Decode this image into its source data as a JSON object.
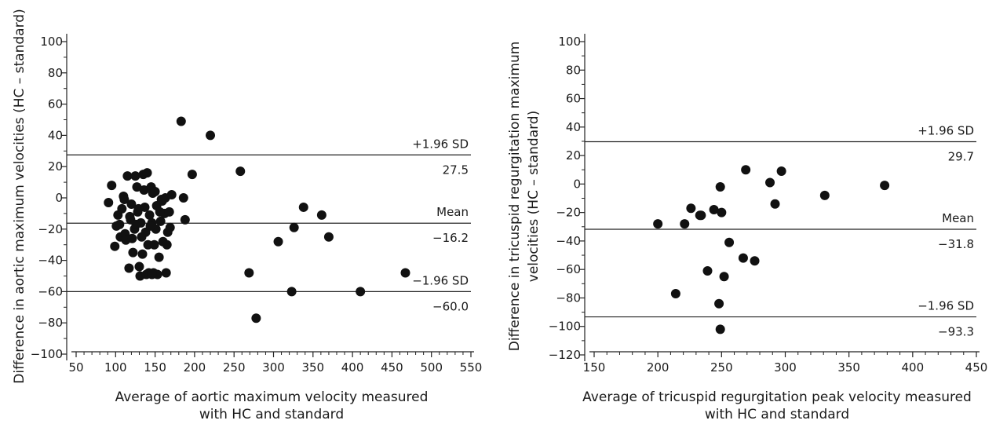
{
  "chart_data": [
    {
      "type": "scatter",
      "xlabel": [
        "Average of aortic maximum velocity measured",
        "with HC and standard"
      ],
      "ylabel": "Difference in aortic maximum velocities (HC – standard)",
      "xlim": [
        50,
        550
      ],
      "ylim": [
        -100,
        100
      ],
      "xticks": [
        50,
        100,
        150,
        200,
        250,
        300,
        350,
        400,
        450,
        500,
        550
      ],
      "yticks": [
        100,
        80,
        60,
        40,
        20,
        0,
        -20,
        -40,
        -60,
        -80,
        -100
      ],
      "ytick_labels": [
        "100",
        "80",
        "60",
        "40",
        "20",
        "0",
        "−20",
        "−40",
        "−60",
        "−80",
        "−100"
      ],
      "grid": false,
      "lines": [
        {
          "label": "+1.96 SD",
          "value_label": "27.5",
          "y": 27.5
        },
        {
          "label": "Mean",
          "value_label": "−16.2",
          "y": -16.2
        },
        {
          "label": "−1.96 SD",
          "value_label": "−60.0",
          "y": -60.0
        }
      ],
      "points": [
        [
          183,
          49
        ],
        [
          220,
          40
        ],
        [
          258,
          17
        ],
        [
          197,
          15
        ],
        [
          186,
          0
        ],
        [
          188,
          -14
        ],
        [
          269,
          -48
        ],
        [
          278,
          -77
        ],
        [
          306,
          -28
        ],
        [
          326,
          -19
        ],
        [
          323,
          -60
        ],
        [
          338,
          -6
        ],
        [
          361,
          -11
        ],
        [
          370,
          -25
        ],
        [
          410,
          -60
        ],
        [
          467,
          -48
        ],
        [
          95,
          8
        ],
        [
          91,
          -3
        ],
        [
          103,
          -11
        ],
        [
          106,
          -25
        ],
        [
          99,
          -31
        ],
        [
          101,
          -18
        ],
        [
          108,
          -7
        ],
        [
          110,
          1
        ],
        [
          112,
          -23
        ],
        [
          115,
          14
        ],
        [
          117,
          -45
        ],
        [
          113,
          -27
        ],
        [
          118,
          -12
        ],
        [
          120,
          -4
        ],
        [
          122,
          -35
        ],
        [
          124,
          -20
        ],
        [
          125,
          14
        ],
        [
          127,
          7
        ],
        [
          128,
          -9
        ],
        [
          130,
          -44
        ],
        [
          131,
          -50
        ],
        [
          132,
          -16
        ],
        [
          134,
          -36
        ],
        [
          135,
          15
        ],
        [
          136,
          5
        ],
        [
          137,
          -6
        ],
        [
          138,
          -22
        ],
        [
          139,
          -49
        ],
        [
          140,
          16
        ],
        [
          141,
          -30
        ],
        [
          142,
          -48
        ],
        [
          143,
          -11
        ],
        [
          145,
          7
        ],
        [
          146,
          -16
        ],
        [
          147,
          3
        ],
        [
          148,
          -48
        ],
        [
          149,
          -30
        ],
        [
          150,
          4
        ],
        [
          151,
          -20
        ],
        [
          152,
          -5
        ],
        [
          153,
          -49
        ],
        [
          155,
          -38
        ],
        [
          156,
          -9
        ],
        [
          157,
          -15
        ],
        [
          159,
          -2
        ],
        [
          160,
          -28
        ],
        [
          162,
          -10
        ],
        [
          163,
          0
        ],
        [
          164,
          -48
        ],
        [
          165,
          -30
        ],
        [
          166,
          -22
        ],
        [
          168,
          -9
        ],
        [
          169,
          -19
        ],
        [
          171,
          2
        ],
        [
          119,
          -14
        ],
        [
          126,
          -17
        ],
        [
          144,
          -18
        ],
        [
          133,
          -25
        ],
        [
          158,
          -1
        ],
        [
          111,
          -1
        ],
        [
          105,
          -17
        ],
        [
          129,
          -7
        ],
        [
          121,
          -26
        ],
        [
          146,
          -49
        ]
      ]
    },
    {
      "type": "scatter",
      "xlabel": [
        "Average of tricuspid regurgitation peak velocity measured",
        "with HC and standard"
      ],
      "ylabel": [
        "Difference in tricuspid regurgitation maximum",
        "velocities (HC – standard)"
      ],
      "xlim": [
        150,
        450
      ],
      "ylim": [
        -120,
        100
      ],
      "xticks": [
        150,
        200,
        250,
        300,
        350,
        400,
        450
      ],
      "yticks": [
        100,
        80,
        60,
        40,
        20,
        0,
        -20,
        -40,
        -60,
        -80,
        -100,
        -120
      ],
      "ytick_labels": [
        "100",
        "80",
        "60",
        "40",
        "20",
        "0",
        "−20",
        "−40",
        "−60",
        "−80",
        "−100",
        "−120"
      ],
      "grid": false,
      "lines": [
        {
          "label": "+1.96 SD",
          "value_label": "29.7",
          "y": 29.7
        },
        {
          "label": "Mean",
          "value_label": "−31.8",
          "y": -31.8
        },
        {
          "label": "−1.96 SD",
          "value_label": "−93.3",
          "y": -93.3
        }
      ],
      "points": [
        [
          200,
          -28
        ],
        [
          221,
          -28
        ],
        [
          226,
          -17
        ],
        [
          233,
          -22
        ],
        [
          239,
          -61
        ],
        [
          244,
          -18
        ],
        [
          248,
          -84
        ],
        [
          249,
          -102
        ],
        [
          249,
          -2
        ],
        [
          250,
          -20
        ],
        [
          252,
          -65
        ],
        [
          256,
          -41
        ],
        [
          267,
          -52
        ],
        [
          269,
          10
        ],
        [
          276,
          -54
        ],
        [
          288,
          1
        ],
        [
          292,
          -14
        ],
        [
          297,
          9
        ],
        [
          331,
          -8
        ],
        [
          378,
          -1
        ],
        [
          214,
          -77
        ],
        [
          234,
          -22
        ]
      ]
    }
  ]
}
